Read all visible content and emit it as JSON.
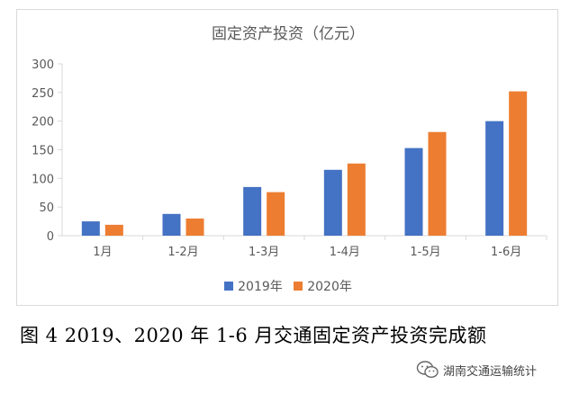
{
  "chart_data": {
    "type": "bar",
    "title": "固定资产投资（亿元）",
    "categories": [
      "1月",
      "1-2月",
      "1-3月",
      "1-4月",
      "1-5月",
      "1-6月"
    ],
    "series": [
      {
        "name": "2019年",
        "color": "#4472c4",
        "values": [
          25,
          38,
          85,
          115,
          153,
          200
        ]
      },
      {
        "name": "2020年",
        "color": "#ed7d31",
        "values": [
          19,
          30,
          76,
          126,
          181,
          252
        ]
      }
    ],
    "ylim": [
      0,
      300
    ],
    "yticks": [
      0,
      50,
      100,
      150,
      200,
      250,
      300
    ],
    "xlabel": "",
    "ylabel": "",
    "grid": false,
    "legend": "bottom"
  },
  "caption": "图 4   2019、2020 年 1-6 月交通固定资产投资完成额",
  "watermark": {
    "text": "湖南交通运输统计",
    "icon": "wechat-icon"
  }
}
